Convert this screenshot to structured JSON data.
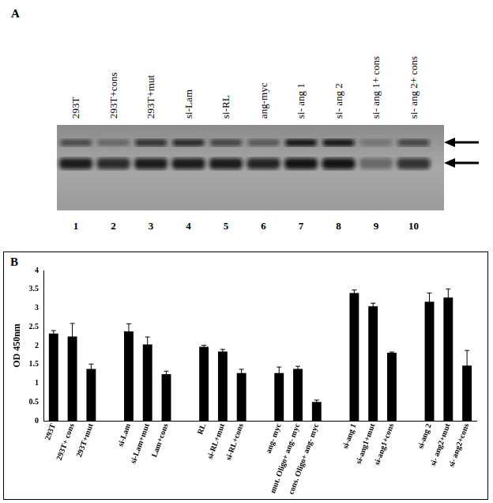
{
  "figure_a": {
    "panel": "A",
    "lanes": [
      {
        "label": "293T",
        "number": 1
      },
      {
        "label": "293T+cons",
        "number": 2
      },
      {
        "label": "293T+mut",
        "number": 3
      },
      {
        "label": "si-Lam",
        "number": 4
      },
      {
        "label": "si-RL",
        "number": 5
      },
      {
        "label": "ang-myc",
        "number": 6
      },
      {
        "label": "si- ang 1",
        "number": 7
      },
      {
        "label": "si- ang 2",
        "number": 8
      },
      {
        "label": "si- ang 1+ cons",
        "number": 9
      },
      {
        "label": "si- ang 2+ cons",
        "number": 10
      }
    ]
  },
  "chart_data": {
    "type": "bar",
    "panel": "B",
    "y_label": "OD 450nm",
    "categories": [
      "293T",
      "293T+ cons",
      "293T+mut",
      null,
      "si-Lam",
      "si-Lam+mut",
      "Lam+cons",
      null,
      "RL",
      "si-RL+mut",
      "si-RL+cons",
      null,
      "ang- myc",
      "mut. Oligo+ ang- myc",
      "cons. Oligo+ ang- myc",
      null,
      "si-ang 1",
      "si-ang1+mut",
      "si-ang1+cons",
      null,
      "si-ang 2",
      "si- ang2+mut",
      "si- ang2+cons"
    ],
    "values": [
      2.32,
      2.24,
      1.38,
      null,
      2.38,
      2.03,
      1.24,
      null,
      1.97,
      1.84,
      1.27,
      null,
      1.27,
      1.38,
      0.5,
      null,
      3.4,
      3.05,
      1.81,
      null,
      3.17,
      3.28,
      1.47
    ],
    "errors": [
      0.08,
      0.35,
      0.13,
      null,
      0.2,
      0.2,
      0.08,
      null,
      0.04,
      0.06,
      0.1,
      null,
      0.16,
      0.07,
      0.05,
      null,
      0.08,
      0.08,
      0.02,
      null,
      0.23,
      0.23,
      0.4
    ],
    "color": "#000000",
    "ylim": [
      0,
      4
    ],
    "yticks": [
      0,
      0.5,
      1,
      1.5,
      2,
      2.5,
      3,
      3.5,
      4
    ],
    "grid": false
  }
}
